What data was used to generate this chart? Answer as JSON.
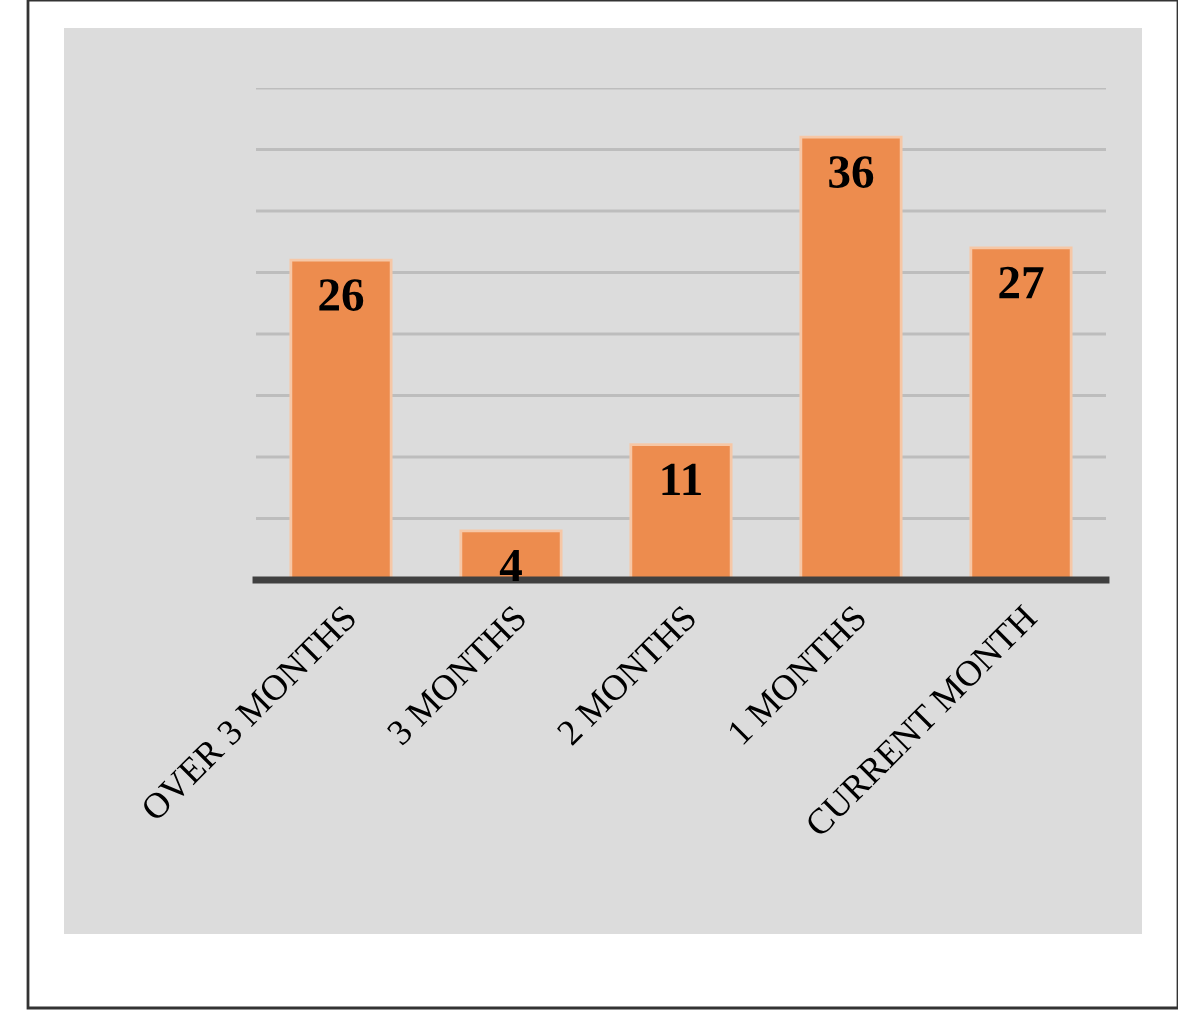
{
  "chart_data": {
    "type": "bar",
    "categories": [
      "OVER 3 MONTHS",
      "3 MONTHS",
      "2 MONTHS",
      "1 MONTHS",
      "CURRENT MONTH"
    ],
    "values": [
      26,
      4,
      11,
      36,
      27
    ],
    "color": "#ed8c4e",
    "ylim": [
      0,
      40
    ],
    "yticks": [
      {
        "value": 0,
        "label": null
      },
      {
        "value": 5,
        "label": null
      },
      {
        "value": 10,
        "label": null
      },
      {
        "value": 15,
        "label": null
      },
      {
        "value": 20,
        "label": null
      },
      {
        "value": 25,
        "label": null
      },
      {
        "value": 30,
        "label": null
      },
      {
        "value": 35,
        "label": null
      },
      {
        "value": 40,
        "label": null
      }
    ],
    "tick_labels": "x",
    "grid": "y",
    "data_labels": true
  }
}
